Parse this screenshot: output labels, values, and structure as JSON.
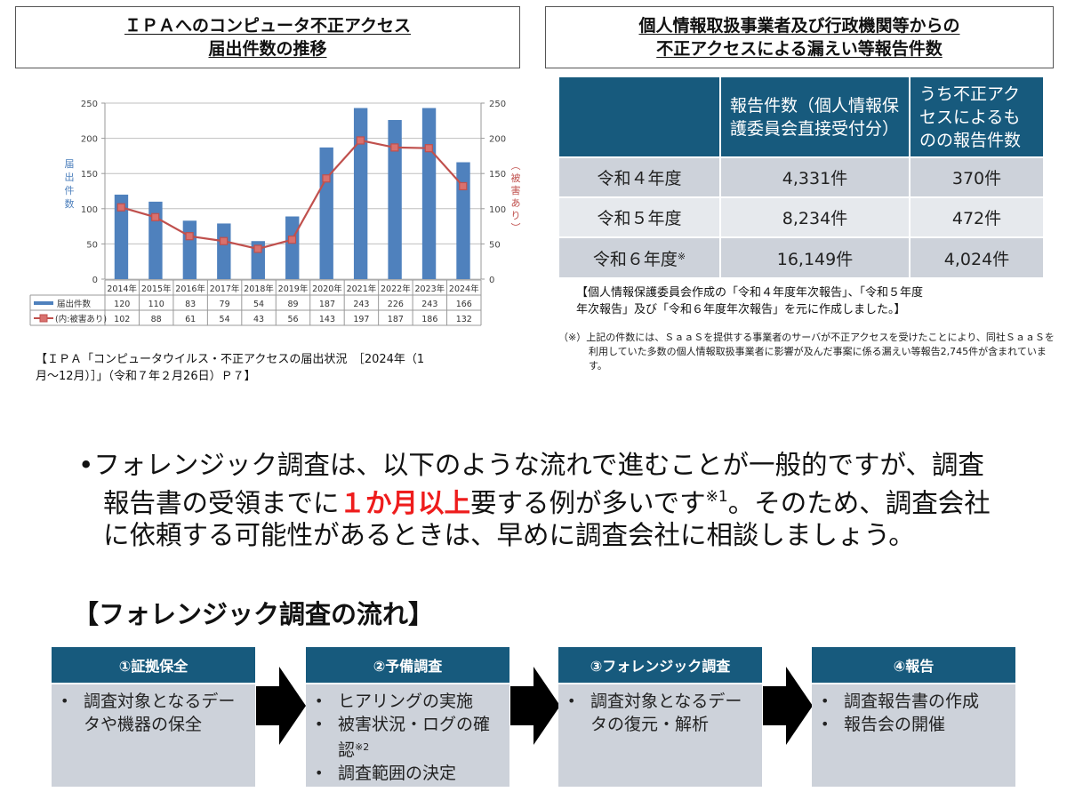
{
  "left_panel": {
    "title_line1": "ＩＰＡへのコンピュータ不正アクセス",
    "title_line2": "届出件数の推移",
    "source_line1": "【ＩＰＡ「コンピュータウイルス・不正アクセスの届出状況　［2024年（1",
    "source_line2": "月～12月）］」（令和７年２月26日）Ｐ７】"
  },
  "chart_data": {
    "type": "bar",
    "title": "ＩＰＡへのコンピュータ不正アクセス届出件数の推移",
    "categories": [
      "2014年",
      "2015年",
      "2016年",
      "2017年",
      "2018年",
      "2019年",
      "2020年",
      "2021年",
      "2022年",
      "2023年",
      "2024年"
    ],
    "series": [
      {
        "name": "届出件数",
        "type": "bar",
        "color": "#4f81bd",
        "axis": "left",
        "values": [
          120,
          110,
          83,
          79,
          54,
          89,
          187,
          243,
          226,
          243,
          166
        ]
      },
      {
        "name": "(内:被害あり)",
        "type": "line",
        "color": "#c0504d",
        "axis": "right",
        "values": [
          102,
          88,
          61,
          54,
          43,
          56,
          143,
          197,
          187,
          186,
          132
        ]
      }
    ],
    "ylabel": "届出件数",
    "ylabel_right": "（被害あり）",
    "ylim": [
      0,
      250
    ],
    "yticks": [
      0,
      50,
      100,
      150,
      200,
      250
    ],
    "grid": true,
    "legend_position": "data-table"
  },
  "right_panel": {
    "title_line1": "個人情報取扱事業者及び行政機関等からの",
    "title_line2": "不正アクセスによる漏えい等報告件数",
    "table": {
      "headers": [
        "",
        "報告件数（個人情報保護委員会直接受付分）",
        "うち不正アクセスによるものの報告件数"
      ],
      "rows": [
        {
          "year": "令和４年度",
          "mark": "",
          "total": "4,331件",
          "unauthorized": "370件"
        },
        {
          "year": "令和５年度",
          "mark": "",
          "total": "8,234件",
          "unauthorized": "472件"
        },
        {
          "year": "令和６年度",
          "mark": "※",
          "total": "16,149件",
          "unauthorized": "4,024件"
        }
      ]
    },
    "source_line1": "【個人情報保護委員会作成の「令和４年度年次報告」、「令和５年度",
    "source_line2": "年次報告」及び「令和６年度年次報告」を元に作成しました。】",
    "note": "（※）上記の件数には、ＳａａＳを提供する事業者のサーバが不正アクセスを受けたことにより、同社ＳａａＳを利用していた多数の個人情報取扱事業者に影響が及んだ事案に係る漏えい等報告2,745件が含まれています。"
  },
  "body": {
    "bullet_part1": "フォレンジック調査は、以下のような流れで進むことが一般的ですが、調査報告書の受領までに",
    "bullet_highlight": "１か月以上",
    "bullet_part2": "要する例が多いです",
    "bullet_sup": "※1",
    "bullet_part3": "。そのため、調査会社に依頼する可能性があるときは、早めに調査会社に相談しましょう。",
    "highlight_color": "#ee1c1c"
  },
  "flow": {
    "heading": "【フォレンジック調査の流れ】",
    "steps": [
      {
        "title": "①証拠保全",
        "items": [
          {
            "text": "調査対象となるデータや機器の保全",
            "sup": ""
          }
        ]
      },
      {
        "title": "②予備調査",
        "items": [
          {
            "text": "ヒアリングの実施",
            "sup": ""
          },
          {
            "text": "被害状況・ログの確認",
            "sup": "※2"
          },
          {
            "text": "調査範囲の決定",
            "sup": ""
          }
        ]
      },
      {
        "title": "③フォレンジック調査",
        "items": [
          {
            "text": "調査対象となるデータの復元・解析",
            "sup": ""
          }
        ]
      },
      {
        "title": "④報告",
        "items": [
          {
            "text": "調査報告書の作成",
            "sup": ""
          },
          {
            "text": "報告会の開催",
            "sup": ""
          }
        ]
      }
    ],
    "header_color": "#175a7d",
    "body_color": "#cdd2da"
  }
}
